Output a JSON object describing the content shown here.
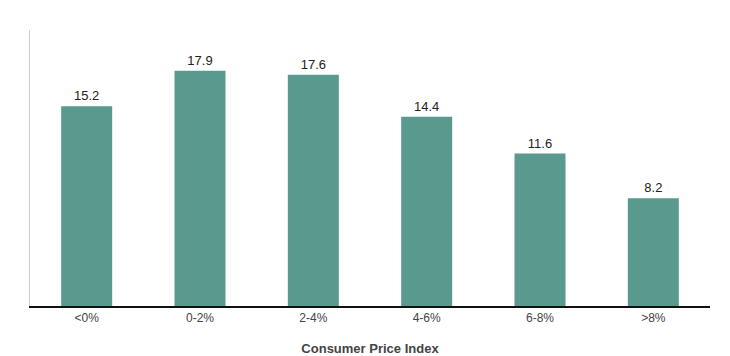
{
  "chart_data": {
    "type": "bar",
    "xlabel": "Consumer Price Index",
    "categories": [
      "<0%",
      "0-2%",
      "2-4%",
      "4-6%",
      "6-8%",
      ">8%"
    ],
    "values": [
      15.2,
      17.9,
      17.6,
      14.4,
      11.6,
      8.2
    ],
    "color": "#5a9a8e",
    "ylim": [
      0,
      21
    ],
    "grid": false,
    "data_labels": true,
    "tick_labels": "x"
  }
}
